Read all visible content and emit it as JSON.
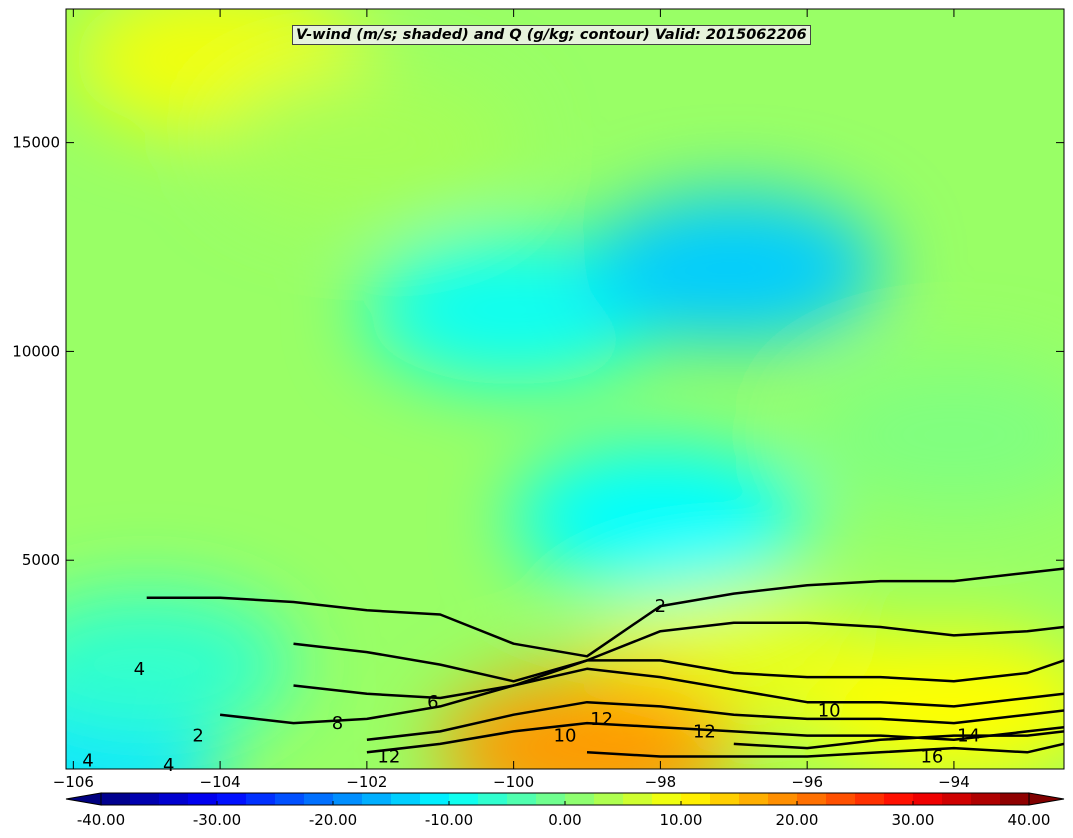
{
  "chart_data": {
    "type": "heatmap",
    "title": "V-wind (m/s; shaded) and Q (g/kg; contour) Valid: 2015062206",
    "xlabel": "",
    "ylabel": "",
    "xlim": [
      -106.1,
      -92.5
    ],
    "ylim": [
      0,
      18200
    ],
    "x_ticks": [
      -106,
      -104,
      -102,
      -100,
      -98,
      -96,
      -94
    ],
    "x_tick_labels": [
      "−106",
      "−104",
      "−102",
      "−100",
      "−98",
      "−96",
      "−94"
    ],
    "y_ticks": [
      5000,
      10000,
      15000
    ],
    "y_tick_labels": [
      "5000",
      "10000",
      "15000"
    ],
    "shaded_field": {
      "name": "V-wind",
      "units": "m/s",
      "vmin": -40,
      "vmax": 40,
      "colormap": "jet",
      "regions": [
        {
          "x": -106,
          "y": 0,
          "value": -12
        },
        {
          "x": -105,
          "y": 2500,
          "value": -6
        },
        {
          "x": -104,
          "y": 17000,
          "value": 9
        },
        {
          "x": -102,
          "y": 15000,
          "value": 3
        },
        {
          "x": -100,
          "y": 11000,
          "value": -9
        },
        {
          "x": -97,
          "y": 12000,
          "value": -14
        },
        {
          "x": -98,
          "y": 6000,
          "value": -10
        },
        {
          "x": -97,
          "y": 2500,
          "value": 8
        },
        {
          "x": -99,
          "y": 500,
          "value": 18
        },
        {
          "x": -94,
          "y": 1500,
          "value": 10
        },
        {
          "x": -94,
          "y": 8000,
          "value": 0
        }
      ]
    },
    "contour_field": {
      "name": "Q",
      "units": "g/kg",
      "levels": [
        2,
        4,
        6,
        8,
        10,
        12,
        14,
        16
      ],
      "contours": [
        {
          "level": 2,
          "x": [
            -105.0,
            -104.0,
            -103.0,
            -102.0,
            -101.0,
            -100.0,
            -99.0,
            -98.0,
            -97.0,
            -96.0,
            -95.0,
            -94.0,
            -93.0,
            -92.5
          ],
          "y": [
            4100,
            4100,
            4000,
            3800,
            3700,
            3000,
            2700,
            3900,
            4200,
            4400,
            4500,
            4500,
            4700,
            4800
          ]
        },
        {
          "level": 4,
          "x": [
            -103.0,
            -102.0,
            -101.0,
            -100.0,
            -99.0,
            -98.0,
            -97.0,
            -96.0,
            -95.0,
            -94.0,
            -93.0,
            -92.5
          ],
          "y": [
            3000,
            2800,
            2500,
            2100,
            2600,
            3300,
            3500,
            3500,
            3400,
            3200,
            3300,
            3400
          ]
        },
        {
          "level": 6,
          "x": [
            -103.0,
            -102.0,
            -101.0,
            -100.0,
            -99.0,
            -98.0,
            -97.0,
            -96.0,
            -95.0,
            -94.0,
            -93.0,
            -92.5
          ],
          "y": [
            2000,
            1800,
            1700,
            2000,
            2600,
            2600,
            2300,
            2200,
            2200,
            2100,
            2300,
            2600
          ]
        },
        {
          "level": 8,
          "x": [
            -104.0,
            -103.0,
            -102.0,
            -101.0,
            -100.0,
            -99.0,
            -98.0,
            -97.0,
            -96.0,
            -95.0,
            -94.0,
            -93.0,
            -92.5
          ],
          "y": [
            1300,
            1100,
            1200,
            1500,
            2000,
            2400,
            2200,
            1900,
            1600,
            1600,
            1500,
            1700,
            1800
          ]
        },
        {
          "level": 10,
          "x": [
            -102.0,
            -101.0,
            -100.0,
            -99.0,
            -98.0,
            -97.0,
            -96.0,
            -95.0,
            -94.0,
            -93.0,
            -92.5
          ],
          "y": [
            700,
            900,
            1300,
            1600,
            1500,
            1300,
            1200,
            1200,
            1100,
            1300,
            1400
          ]
        },
        {
          "level": 12,
          "x": [
            -102.0,
            -101.0,
            -100.0,
            -99.0,
            -98.0,
            -97.0,
            -96.0,
            -95.0,
            -94.0,
            -93.0,
            -92.5
          ],
          "y": [
            400,
            600,
            900,
            1100,
            1000,
            900,
            800,
            800,
            700,
            900,
            1000
          ]
        },
        {
          "level": 14,
          "x": [
            -97.0,
            -96.0,
            -95.0,
            -94.0,
            -93.0,
            -92.5
          ],
          "y": [
            600,
            500,
            700,
            800,
            800,
            900
          ]
        },
        {
          "level": 16,
          "x": [
            -99.0,
            -98.0,
            -97.0,
            -96.0,
            -95.0,
            -94.0,
            -93.0,
            -92.5
          ],
          "y": [
            400,
            300,
            300,
            300,
            400,
            500,
            400,
            600
          ]
        }
      ],
      "labels": [
        {
          "text": "2",
          "x": -98.0,
          "y": 3900
        },
        {
          "text": "2",
          "x": -104.3,
          "y": 800
        },
        {
          "text": "4",
          "x": -105.1,
          "y": 2400
        },
        {
          "text": "4",
          "x": -105.8,
          "y": 200
        },
        {
          "text": "4",
          "x": -104.7,
          "y": 100
        },
        {
          "text": "6",
          "x": -101.1,
          "y": 1600
        },
        {
          "text": "8",
          "x": -102.4,
          "y": 1100
        },
        {
          "text": "10",
          "x": -99.3,
          "y": 800
        },
        {
          "text": "10",
          "x": -95.7,
          "y": 1400
        },
        {
          "text": "12",
          "x": -101.7,
          "y": 300
        },
        {
          "text": "12",
          "x": -98.8,
          "y": 1200
        },
        {
          "text": "12",
          "x": -97.4,
          "y": 900
        },
        {
          "text": "14",
          "x": -93.8,
          "y": 800
        },
        {
          "text": "16",
          "x": -94.3,
          "y": 300
        }
      ]
    },
    "colorbar": {
      "orientation": "horizontal",
      "placement": "bottom",
      "extend": "both",
      "levels": [
        -40,
        -37.5,
        -35,
        -32.5,
        -30,
        -27.5,
        -25,
        -22.5,
        -20,
        -17.5,
        -15,
        -12.5,
        -10,
        -7.5,
        -5,
        -2.5,
        0,
        2.5,
        5,
        7.5,
        10,
        12.5,
        15,
        17.5,
        20,
        22.5,
        25,
        27.5,
        30,
        32.5,
        35,
        37.5,
        40
      ],
      "tick_values": [
        -40,
        -30,
        -20,
        -10,
        0,
        10,
        20,
        30,
        40
      ],
      "tick_labels": [
        "-40.00",
        "-30.00",
        "-20.00",
        "-10.00",
        "0.00",
        "10.00",
        "20.00",
        "30.00",
        "40.00"
      ]
    }
  }
}
